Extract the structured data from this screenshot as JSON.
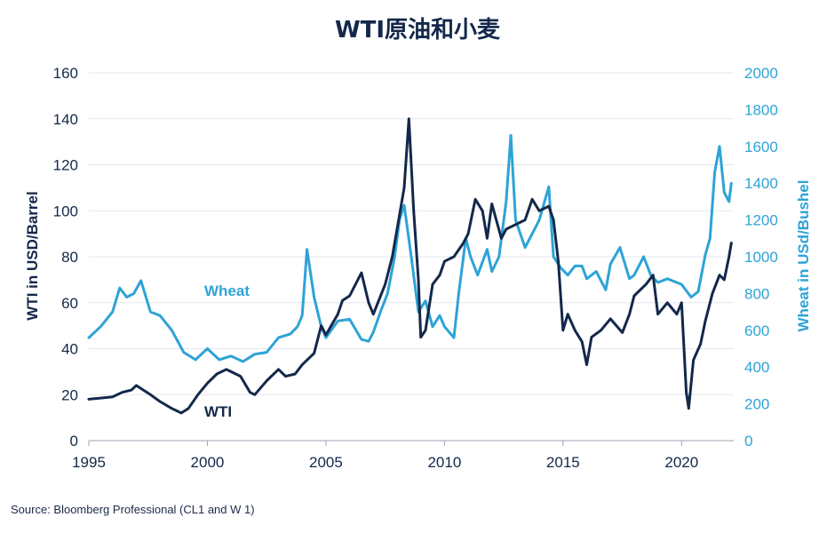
{
  "chart_data": {
    "type": "line",
    "title": "WTI原油和小麦",
    "ylabel": "WTI in USD/Barrel",
    "y2label": "Wheat in USd/Bushel",
    "x_ticks": [
      "1995",
      "2000",
      "2005",
      "2010",
      "2015",
      "2020"
    ],
    "y_ticks": [
      "0",
      "20",
      "40",
      "60",
      "80",
      "100",
      "120",
      "140",
      "160"
    ],
    "y2_ticks": [
      "0",
      "200",
      "400",
      "600",
      "800",
      "1000",
      "1200",
      "1400",
      "1600",
      "1800",
      "2000"
    ],
    "xlim": [
      1995,
      2022.2
    ],
    "ylim": [
      0,
      160
    ],
    "y2lim": [
      0,
      2000
    ],
    "grid": true,
    "colors": {
      "wti": "#13284a",
      "wheat": "#2ea3d6",
      "grid": "#e3e7ee"
    },
    "series": [
      {
        "name": "WTI",
        "axis": "left",
        "x": [
          1995.0,
          1995.5,
          1996.0,
          1996.4,
          1996.8,
          1997.0,
          1997.3,
          1997.6,
          1998.0,
          1998.5,
          1998.9,
          1999.2,
          1999.6,
          2000.0,
          2000.4,
          2000.8,
          2001.0,
          2001.4,
          2001.8,
          2002.0,
          2002.5,
          2003.0,
          2003.3,
          2003.7,
          2004.0,
          2004.5,
          2004.8,
          2005.0,
          2005.5,
          2005.7,
          2006.0,
          2006.5,
          2006.8,
          2007.0,
          2007.5,
          2007.8,
          2008.0,
          2008.3,
          2008.5,
          2008.7,
          2008.9,
          2009.0,
          2009.2,
          2009.5,
          2009.8,
          2010.0,
          2010.4,
          2010.8,
          2011.0,
          2011.3,
          2011.6,
          2011.8,
          2012.0,
          2012.4,
          2012.6,
          2013.0,
          2013.4,
          2013.7,
          2014.0,
          2014.4,
          2014.6,
          2014.8,
          2015.0,
          2015.2,
          2015.5,
          2015.8,
          2016.0,
          2016.2,
          2016.6,
          2017.0,
          2017.5,
          2017.8,
          2018.0,
          2018.5,
          2018.8,
          2019.0,
          2019.4,
          2019.8,
          2020.0,
          2020.2,
          2020.3,
          2020.5,
          2020.8,
          2021.0,
          2021.3,
          2021.6,
          2021.8,
          2022.0,
          2022.1
        ],
        "values": [
          18,
          18.5,
          19,
          21,
          22,
          24,
          22,
          20,
          17,
          14,
          12,
          14,
          20,
          25,
          29,
          31,
          30,
          28,
          21,
          20,
          26,
          31,
          28,
          29,
          33,
          38,
          50,
          46,
          55,
          61,
          63,
          73,
          60,
          55,
          68,
          80,
          92,
          110,
          140,
          100,
          70,
          45,
          48,
          68,
          72,
          78,
          80,
          86,
          90,
          105,
          100,
          88,
          103,
          88,
          92,
          94,
          96,
          105,
          100,
          102,
          96,
          78,
          48,
          55,
          48,
          43,
          33,
          45,
          48,
          53,
          47,
          55,
          63,
          68,
          72,
          55,
          60,
          55,
          60,
          21,
          14,
          35,
          42,
          52,
          64,
          72,
          70,
          80,
          86
        ]
      },
      {
        "name": "Wheat",
        "axis": "right",
        "x": [
          1995.0,
          1995.5,
          1996.0,
          1996.3,
          1996.6,
          1996.9,
          1997.2,
          1997.6,
          1998.0,
          1998.5,
          1999.0,
          1999.5,
          2000.0,
          2000.5,
          2001.0,
          2001.5,
          2002.0,
          2002.5,
          2003.0,
          2003.5,
          2003.8,
          2004.0,
          2004.2,
          2004.5,
          2004.8,
          2005.0,
          2005.5,
          2006.0,
          2006.5,
          2006.8,
          2007.0,
          2007.3,
          2007.6,
          2007.9,
          2008.1,
          2008.3,
          2008.6,
          2008.9,
          2009.2,
          2009.5,
          2009.8,
          2010.0,
          2010.4,
          2010.6,
          2010.9,
          2011.1,
          2011.4,
          2011.8,
          2012.0,
          2012.3,
          2012.6,
          2012.8,
          2013.0,
          2013.4,
          2013.8,
          2014.0,
          2014.4,
          2014.6,
          2014.9,
          2015.2,
          2015.5,
          2015.8,
          2016.0,
          2016.4,
          2016.8,
          2017.0,
          2017.4,
          2017.8,
          2018.0,
          2018.4,
          2018.7,
          2019.0,
          2019.4,
          2019.8,
          2020.0,
          2020.4,
          2020.7,
          2021.0,
          2021.2,
          2021.4,
          2021.6,
          2021.8,
          2022.0,
          2022.1
        ],
        "values": [
          560,
          620,
          700,
          830,
          780,
          800,
          870,
          700,
          680,
          600,
          480,
          440,
          500,
          440,
          460,
          430,
          470,
          480,
          560,
          580,
          620,
          680,
          1040,
          780,
          620,
          560,
          650,
          660,
          550,
          540,
          590,
          700,
          800,
          1000,
          1200,
          1280,
          1000,
          700,
          760,
          620,
          680,
          620,
          560,
          800,
          1100,
          1000,
          900,
          1040,
          920,
          1000,
          1300,
          1660,
          1200,
          1050,
          1150,
          1200,
          1380,
          1000,
          940,
          900,
          950,
          950,
          880,
          920,
          820,
          960,
          1050,
          880,
          900,
          1000,
          900,
          860,
          880,
          860,
          850,
          780,
          810,
          1010,
          1100,
          1460,
          1600,
          1350,
          1300,
          1400
        ]
      }
    ],
    "annotations": [
      "Wheat",
      "WTI"
    ]
  },
  "footer": {
    "source": "Source: Bloomberg Professional  (CL1 and W 1)"
  }
}
